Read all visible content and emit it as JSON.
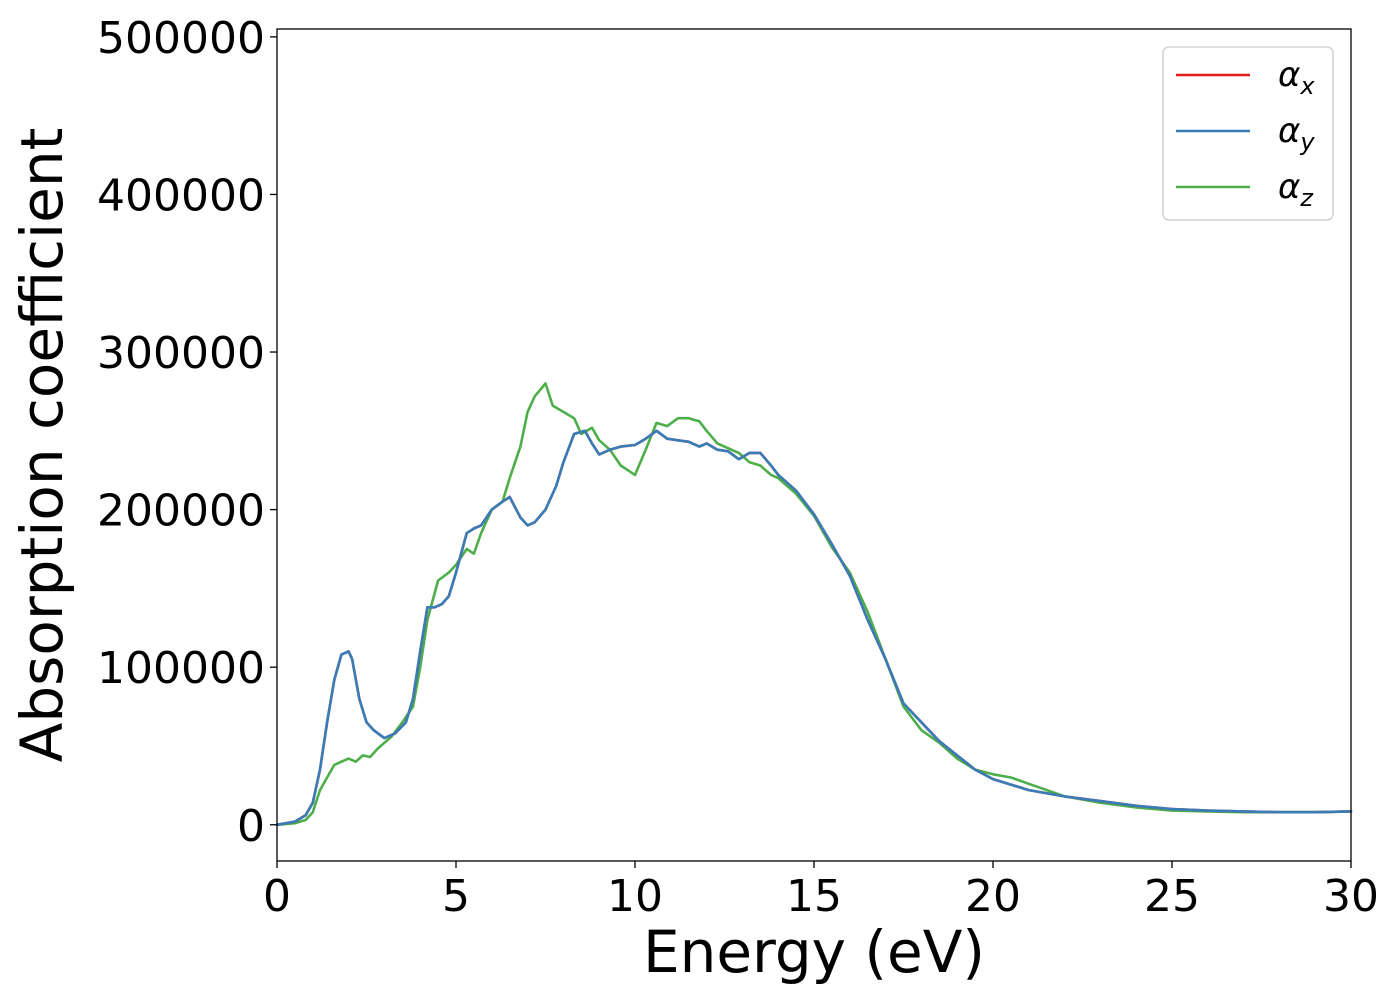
{
  "chart_data": {
    "type": "line",
    "title": "",
    "xlabel": "Energy (eV)",
    "ylabel": "Absorption coefficient",
    "xlim": [
      0,
      30
    ],
    "ylim": [
      -23000,
      505000
    ],
    "x_ticks": [
      0,
      5,
      10,
      15,
      20,
      25,
      30
    ],
    "y_ticks": [
      0,
      100000,
      200000,
      300000,
      400000,
      500000
    ],
    "x_tick_labels": [
      "0",
      "5",
      "10",
      "15",
      "20",
      "25",
      "30"
    ],
    "y_tick_labels": [
      "0",
      "100000",
      "200000",
      "300000",
      "400000",
      "500000"
    ],
    "grid": false,
    "legend_position": "top-right",
    "series": [
      {
        "name": "αx",
        "symbol": "α",
        "subscript": "x",
        "color": "#e41a1c",
        "x": [
          0,
          0.5,
          0.8,
          1.0,
          1.2,
          1.4,
          1.6,
          1.8,
          2.0,
          2.1,
          2.3,
          2.5,
          2.7,
          3.0,
          3.3,
          3.6,
          3.8,
          4.0,
          4.2,
          4.4,
          4.6,
          4.8,
          5.0,
          5.3,
          5.5,
          5.7,
          6.0,
          6.3,
          6.5,
          6.8,
          7.0,
          7.2,
          7.5,
          7.8,
          8.0,
          8.3,
          8.6,
          8.8,
          9.0,
          9.3,
          9.6,
          10.0,
          10.3,
          10.6,
          10.9,
          11.2,
          11.5,
          11.8,
          12.0,
          12.3,
          12.6,
          12.9,
          13.2,
          13.5,
          13.8,
          14.0,
          14.5,
          15.0,
          15.5,
          16.0,
          16.5,
          17.0,
          17.5,
          18.0,
          18.5,
          19.0,
          19.5,
          20.0,
          21.0,
          22.0,
          23.0,
          24.0,
          25.0,
          26.0,
          27.0,
          28.0,
          29.0,
          30.0
        ],
        "values": [
          0,
          2000,
          6000,
          14000,
          35000,
          65000,
          92000,
          108000,
          110000,
          105000,
          80000,
          65000,
          60000,
          55000,
          58000,
          65000,
          80000,
          110000,
          138000,
          138000,
          140000,
          145000,
          160000,
          185000,
          188000,
          190000,
          200000,
          205000,
          208000,
          195000,
          190000,
          192000,
          200000,
          215000,
          230000,
          248000,
          250000,
          242000,
          235000,
          238000,
          240000,
          241000,
          245000,
          250000,
          245000,
          244000,
          243000,
          240000,
          242000,
          238000,
          237000,
          232000,
          236000,
          236000,
          228000,
          222000,
          212000,
          197000,
          178000,
          158000,
          130000,
          105000,
          77000,
          65000,
          53000,
          44000,
          35000,
          29000,
          22000,
          18000,
          15000,
          12000,
          10000,
          9000,
          8500,
          8000,
          8000,
          8500
        ]
      },
      {
        "name": "αy",
        "symbol": "α",
        "subscript": "y",
        "color": "#377eb8",
        "x": [
          0,
          0.5,
          0.8,
          1.0,
          1.2,
          1.4,
          1.6,
          1.8,
          2.0,
          2.1,
          2.3,
          2.5,
          2.7,
          3.0,
          3.3,
          3.6,
          3.8,
          4.0,
          4.2,
          4.4,
          4.6,
          4.8,
          5.0,
          5.3,
          5.5,
          5.7,
          6.0,
          6.3,
          6.5,
          6.8,
          7.0,
          7.2,
          7.5,
          7.8,
          8.0,
          8.3,
          8.6,
          8.8,
          9.0,
          9.3,
          9.6,
          10.0,
          10.3,
          10.6,
          10.9,
          11.2,
          11.5,
          11.8,
          12.0,
          12.3,
          12.6,
          12.9,
          13.2,
          13.5,
          13.8,
          14.0,
          14.5,
          15.0,
          15.5,
          16.0,
          16.5,
          17.0,
          17.5,
          18.0,
          18.5,
          19.0,
          19.5,
          20.0,
          21.0,
          22.0,
          23.0,
          24.0,
          25.0,
          26.0,
          27.0,
          28.0,
          29.0,
          30.0
        ],
        "values": [
          0,
          2000,
          6000,
          14000,
          35000,
          65000,
          92000,
          108000,
          110000,
          105000,
          80000,
          65000,
          60000,
          55000,
          58000,
          65000,
          80000,
          110000,
          138000,
          138000,
          140000,
          145000,
          160000,
          185000,
          188000,
          190000,
          200000,
          205000,
          208000,
          195000,
          190000,
          192000,
          200000,
          215000,
          230000,
          248000,
          250000,
          242000,
          235000,
          238000,
          240000,
          241000,
          245000,
          250000,
          245000,
          244000,
          243000,
          240000,
          242000,
          238000,
          237000,
          232000,
          236000,
          236000,
          228000,
          222000,
          212000,
          197000,
          178000,
          158000,
          130000,
          105000,
          77000,
          65000,
          53000,
          44000,
          35000,
          29000,
          22000,
          18000,
          15000,
          12000,
          10000,
          9000,
          8500,
          8000,
          8000,
          8500
        ]
      },
      {
        "name": "αz",
        "symbol": "α",
        "subscript": "z",
        "color": "#4daf4a",
        "x": [
          0,
          0.5,
          0.8,
          1.0,
          1.2,
          1.4,
          1.6,
          1.8,
          2.0,
          2.2,
          2.4,
          2.6,
          2.8,
          3.0,
          3.2,
          3.5,
          3.8,
          4.0,
          4.2,
          4.5,
          4.8,
          5.0,
          5.3,
          5.5,
          5.7,
          6.0,
          6.3,
          6.5,
          6.8,
          7.0,
          7.2,
          7.5,
          7.7,
          8.0,
          8.3,
          8.5,
          8.8,
          9.0,
          9.3,
          9.6,
          10.0,
          10.3,
          10.6,
          10.9,
          11.2,
          11.5,
          11.8,
          12.0,
          12.3,
          12.6,
          12.9,
          13.2,
          13.5,
          13.8,
          14.0,
          14.5,
          15.0,
          15.5,
          16.0,
          16.5,
          17.0,
          17.5,
          18.0,
          18.5,
          19.0,
          19.5,
          20.0,
          20.5,
          21.0,
          22.0,
          23.0,
          24.0,
          25.0,
          26.0,
          27.0,
          28.0,
          29.0,
          30.0
        ],
        "values": [
          0,
          1000,
          3000,
          8000,
          22000,
          30000,
          38000,
          40000,
          42000,
          40000,
          44000,
          43000,
          48000,
          52000,
          56000,
          65000,
          75000,
          100000,
          130000,
          155000,
          160000,
          165000,
          175000,
          172000,
          185000,
          200000,
          205000,
          220000,
          240000,
          262000,
          272000,
          280000,
          266000,
          262000,
          258000,
          248000,
          252000,
          244000,
          238000,
          228000,
          222000,
          238000,
          255000,
          253000,
          258000,
          258000,
          256000,
          250000,
          242000,
          239000,
          236000,
          230000,
          228000,
          222000,
          220000,
          210000,
          196000,
          176000,
          160000,
          135000,
          105000,
          75000,
          60000,
          52000,
          42000,
          35000,
          32000,
          30000,
          26000,
          18000,
          14000,
          11000,
          9000,
          8500,
          8000,
          8000,
          8000,
          8500
        ]
      }
    ]
  }
}
